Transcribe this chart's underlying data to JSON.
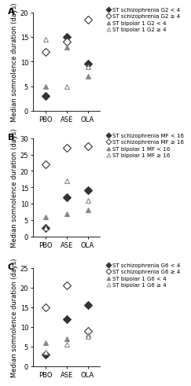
{
  "panels": [
    {
      "label": "A",
      "ylabel": "Median somnolence duration (days)",
      "ylim": [
        0,
        20
      ],
      "yticks": [
        0,
        5,
        10,
        15,
        20
      ],
      "series": [
        {
          "label": "ST schizophrenia G2 < 4",
          "marker": "D",
          "filled": true,
          "color": "#333333",
          "x": [
            0,
            1,
            2
          ],
          "y": [
            3.0,
            15.0,
            9.5
          ]
        },
        {
          "label": "ST schizophrenia G2 ≥ 4",
          "marker": "D",
          "filled": false,
          "color": "#333333",
          "x": [
            0,
            1,
            2
          ],
          "y": [
            12.0,
            14.0,
            18.5
          ]
        },
        {
          "label": "ST bipolar 1 G2 < 4",
          "marker": "^",
          "filled": true,
          "color": "#888888",
          "x": [
            0,
            1,
            2
          ],
          "y": [
            5.0,
            13.0,
            7.0
          ]
        },
        {
          "label": "ST bipolar 1 G2 ≥ 4",
          "marker": "^",
          "filled": false,
          "color": "#888888",
          "x": [
            0,
            1,
            2
          ],
          "y": [
            14.5,
            5.0,
            9.0
          ]
        }
      ]
    },
    {
      "label": "B",
      "ylabel": "Median somnolence duration (days)",
      "ylim": [
        0,
        30
      ],
      "yticks": [
        0,
        5,
        10,
        15,
        20,
        25,
        30
      ],
      "series": [
        {
          "label": "ST schizophrenia MF < 16",
          "marker": "D",
          "filled": true,
          "color": "#333333",
          "x": [
            0,
            1,
            2
          ],
          "y": [
            2.5,
            12.0,
            14.0
          ]
        },
        {
          "label": "ST schizophrenia MF ≥ 16",
          "marker": "D",
          "filled": false,
          "color": "#333333",
          "x": [
            0,
            1,
            2
          ],
          "y": [
            22.0,
            27.0,
            27.5
          ]
        },
        {
          "label": "ST bipolar 1 MF < 16",
          "marker": "^",
          "filled": true,
          "color": "#888888",
          "x": [
            0,
            1,
            2
          ],
          "y": [
            6.0,
            7.0,
            8.0
          ]
        },
        {
          "label": "ST bipolar 1 MF ≥ 16",
          "marker": "^",
          "filled": false,
          "color": "#888888",
          "x": [
            0,
            1,
            2
          ],
          "y": [
            2.5,
            17.0,
            11.0
          ]
        }
      ]
    },
    {
      "label": "C",
      "ylabel": "Median somnolence duration (days)",
      "ylim": [
        0,
        25
      ],
      "yticks": [
        0,
        5,
        10,
        15,
        20,
        25
      ],
      "series": [
        {
          "label": "ST schizophrenia G6 < 4",
          "marker": "D",
          "filled": true,
          "color": "#333333",
          "x": [
            0,
            1,
            2
          ],
          "y": [
            3.0,
            12.0,
            15.5
          ]
        },
        {
          "label": "ST schizophrenia G6 ≥ 4",
          "marker": "D",
          "filled": false,
          "color": "#333333",
          "x": [
            0,
            1,
            2
          ],
          "y": [
            15.0,
            20.5,
            9.0
          ]
        },
        {
          "label": "ST bipolar 1 G6 < 4",
          "marker": "^",
          "filled": true,
          "color": "#888888",
          "x": [
            0,
            1,
            2
          ],
          "y": [
            6.0,
            7.0,
            8.0
          ]
        },
        {
          "label": "ST bipolar 1 G6 ≥ 4",
          "marker": "^",
          "filled": false,
          "color": "#888888",
          "x": [
            0,
            1,
            2
          ],
          "y": [
            3.5,
            5.5,
            7.5
          ]
        }
      ]
    }
  ],
  "xtick_labels": [
    "PBO",
    "ASE",
    "OLA"
  ],
  "background_color": "#ffffff",
  "marker_size": 5,
  "legend_fontsize": 5.0,
  "axis_fontsize": 6.0,
  "tick_fontsize": 6.0,
  "label_fontsize": 8
}
